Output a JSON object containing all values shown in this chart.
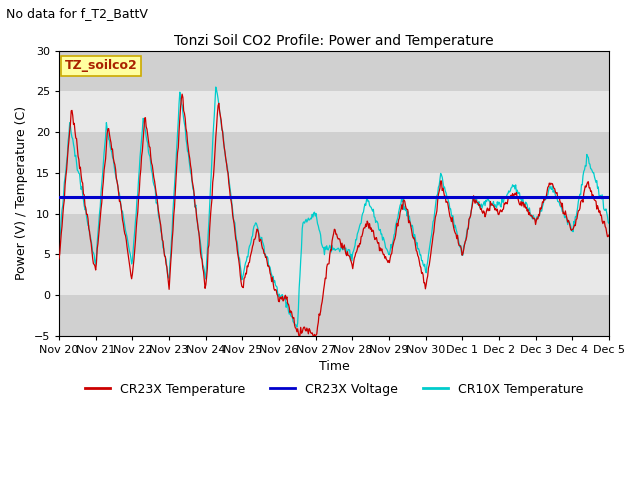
{
  "title": "Tonzi Soil CO2 Profile: Power and Temperature",
  "subtitle": "No data for f_T2_BattV",
  "xlabel": "Time",
  "ylabel": "Power (V) / Temperature (C)",
  "ylim": [
    -5,
    30
  ],
  "yticks": [
    -5,
    0,
    5,
    10,
    15,
    20,
    25,
    30
  ],
  "band_color_light": "#e8e8e8",
  "band_color_dark": "#d0d0d0",
  "voltage_value": 12.0,
  "voltage_color": "#0000cc",
  "cr23x_color": "#cc0000",
  "cr10x_color": "#00cccc",
  "legend_box_facecolor": "#ffffa0",
  "legend_box_edgecolor": "#ccaa00",
  "legend_box_label": "TZ_soilco2",
  "legend_box_textcolor": "#aa2200",
  "legend_entries": [
    "CR23X Temperature",
    "CR23X Voltage",
    "CR10X Temperature"
  ],
  "legend_colors": [
    "#cc0000",
    "#0000cc",
    "#00cccc"
  ],
  "x_tick_labels": [
    "Nov 20",
    "Nov 21",
    "Nov 22",
    "Nov 23",
    "Nov 24",
    "Nov 25",
    "Nov 26",
    "Nov 27",
    "Nov 28",
    "Nov 29",
    "Nov 30",
    "Dec 1",
    "Dec 2",
    "Dec 3",
    "Dec 4",
    "Dec 5"
  ],
  "title_fontsize": 10,
  "subtitle_fontsize": 9,
  "axis_label_fontsize": 9,
  "tick_fontsize": 8
}
